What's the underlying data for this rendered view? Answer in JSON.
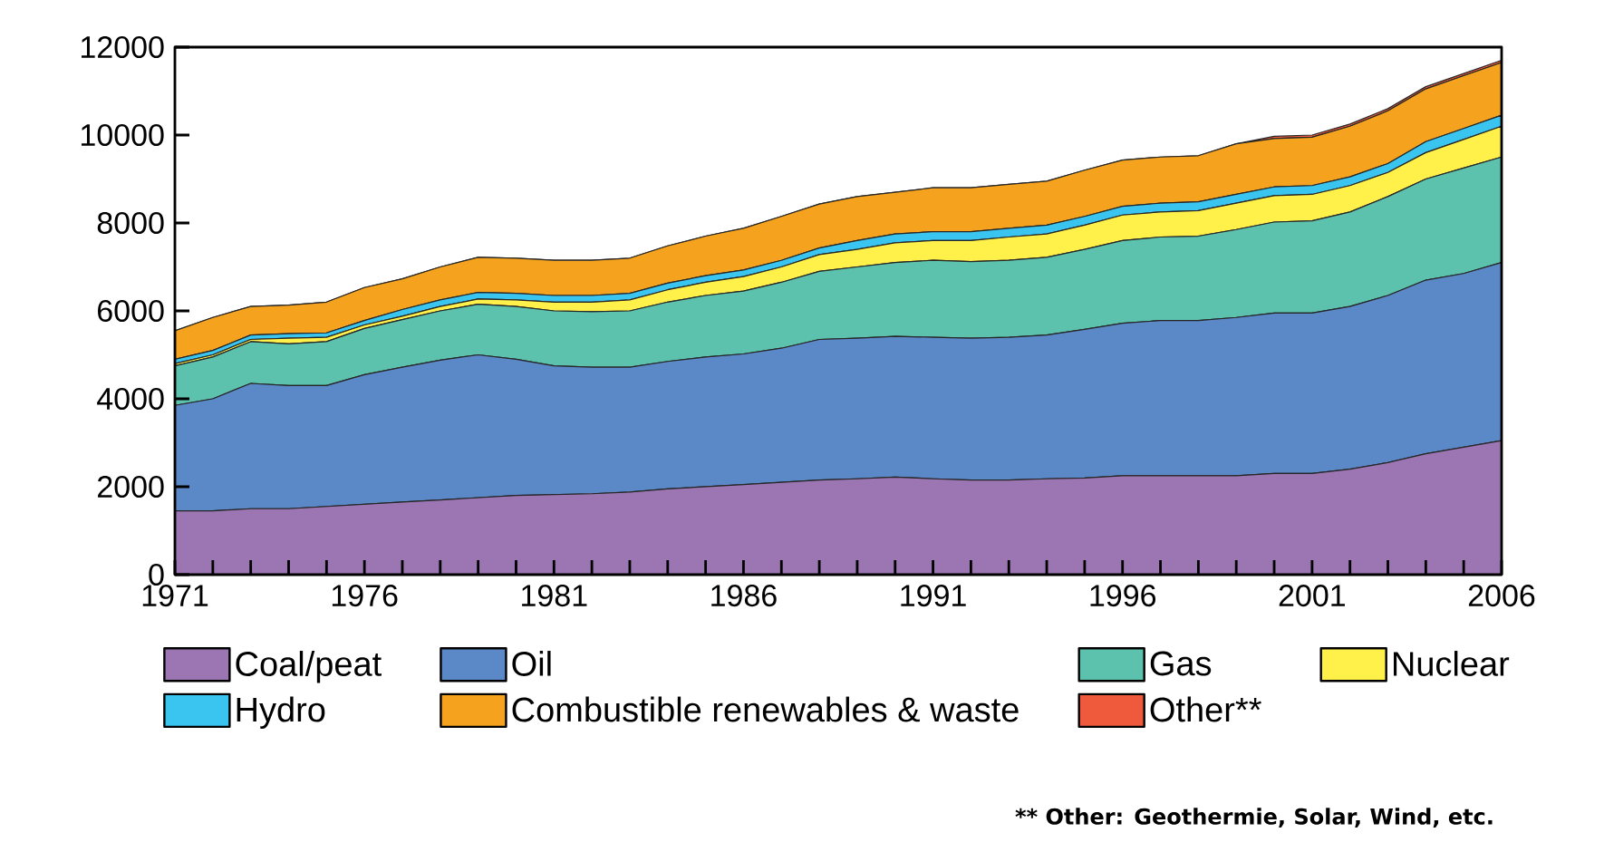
{
  "chart_data": {
    "type": "area",
    "stacked": true,
    "legend": "bottom",
    "x": [
      1971,
      1972,
      1973,
      1974,
      1975,
      1976,
      1977,
      1978,
      1979,
      1980,
      1981,
      1982,
      1983,
      1984,
      1985,
      1986,
      1987,
      1988,
      1989,
      1990,
      1991,
      1992,
      1993,
      1994,
      1995,
      1996,
      1997,
      1998,
      1999,
      2000,
      2001,
      2002,
      2003,
      2004,
      2005,
      2006
    ],
    "xlim": [
      1971,
      2006
    ],
    "xticks": [
      1971,
      1976,
      1981,
      1986,
      1991,
      1996,
      2001,
      2006
    ],
    "ylim": [
      0,
      12000
    ],
    "yticks": [
      0,
      2000,
      4000,
      6000,
      8000,
      10000,
      12000
    ],
    "series": [
      {
        "name": "Coal/peat",
        "color": "#9b76b3",
        "values": [
          1450,
          1450,
          1500,
          1500,
          1550,
          1600,
          1650,
          1700,
          1750,
          1800,
          1820,
          1840,
          1880,
          1950,
          2000,
          2050,
          2100,
          2150,
          2180,
          2220,
          2180,
          2150,
          2150,
          2180,
          2200,
          2250,
          2250,
          2250,
          2250,
          2300,
          2300,
          2400,
          2550,
          2750,
          2900,
          3050
        ]
      },
      {
        "name": "Oil",
        "color": "#5b88c6",
        "values": [
          2400,
          2550,
          2850,
          2800,
          2750,
          2950,
          3070,
          3180,
          3250,
          3100,
          2930,
          2880,
          2840,
          2900,
          2950,
          2970,
          3050,
          3200,
          3200,
          3200,
          3220,
          3230,
          3250,
          3270,
          3380,
          3470,
          3530,
          3530,
          3600,
          3650,
          3650,
          3700,
          3800,
          3950,
          3950,
          4050
        ]
      },
      {
        "name": "Gas",
        "color": "#5cc2ad",
        "values": [
          900,
          950,
          950,
          950,
          1000,
          1050,
          1080,
          1120,
          1150,
          1200,
          1250,
          1260,
          1280,
          1350,
          1400,
          1430,
          1500,
          1550,
          1620,
          1680,
          1750,
          1740,
          1750,
          1770,
          1820,
          1880,
          1900,
          1920,
          2000,
          2070,
          2100,
          2150,
          2250,
          2300,
          2400,
          2400
        ]
      },
      {
        "name": "Nuclear",
        "color": "#fff04a",
        "values": [
          50,
          50,
          50,
          130,
          100,
          80,
          80,
          100,
          120,
          150,
          200,
          220,
          250,
          280,
          300,
          330,
          350,
          380,
          400,
          450,
          450,
          480,
          530,
          530,
          550,
          580,
          570,
          580,
          600,
          600,
          600,
          600,
          550,
          600,
          650,
          700
        ]
      },
      {
        "name": "Hydro",
        "color": "#39c5f0",
        "values": [
          100,
          100,
          100,
          100,
          100,
          100,
          150,
          150,
          150,
          150,
          150,
          150,
          150,
          150,
          150,
          150,
          150,
          150,
          200,
          200,
          200,
          200,
          200,
          200,
          200,
          200,
          200,
          200,
          200,
          200,
          200,
          200,
          200,
          250,
          250,
          250
        ]
      },
      {
        "name": "Combustible renewables & waste",
        "color": "#f5a31e",
        "values": [
          650,
          750,
          650,
          650,
          700,
          750,
          700,
          750,
          800,
          800,
          800,
          800,
          800,
          850,
          900,
          950,
          1000,
          1000,
          1000,
          950,
          1000,
          1000,
          1000,
          1000,
          1050,
          1050,
          1050,
          1050,
          1150,
          1100,
          1100,
          1150,
          1200,
          1200,
          1200,
          1200
        ]
      },
      {
        "name": "Other**",
        "color": "#f05a3c",
        "values": [
          0,
          0,
          0,
          0,
          0,
          0,
          0,
          0,
          0,
          0,
          0,
          0,
          0,
          0,
          0,
          0,
          0,
          0,
          0,
          0,
          0,
          0,
          0,
          0,
          0,
          0,
          0,
          0,
          0,
          50,
          50,
          50,
          50,
          50,
          50,
          50
        ]
      }
    ],
    "annotations": [
      "** Other: Geothermie, Solar, Wind, etc."
    ]
  }
}
